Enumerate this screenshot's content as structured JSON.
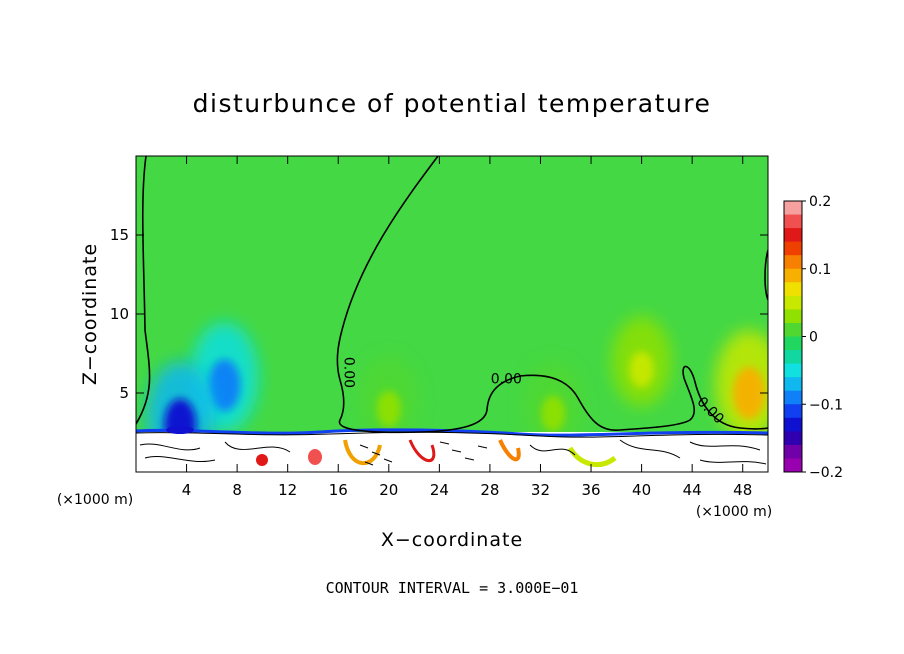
{
  "chart_data": {
    "type": "heatmap",
    "title": "disturbunce of potential temperature",
    "xlabel": "X−coordinate",
    "ylabel": "Z−coordinate",
    "x_unit": "(×1000 m)",
    "z_unit": "(×1000 m)",
    "xlim": [
      0,
      50
    ],
    "ylim": [
      0,
      20
    ],
    "x_ticks": [
      4,
      8,
      12,
      16,
      20,
      24,
      28,
      32,
      36,
      40,
      44,
      48
    ],
    "y_ticks": [
      5,
      10,
      15
    ],
    "colorbar": {
      "ticks": [
        0.2,
        0.1,
        0,
        -0.1,
        -0.2
      ],
      "tick_labels": [
        "0.2",
        "0.1",
        "0",
        "−0.1",
        "−0.2"
      ],
      "range": [
        -0.2,
        0.2
      ],
      "colors": [
        "#f7a0a0",
        "#f05050",
        "#e01818",
        "#f04000",
        "#f88000",
        "#f8b000",
        "#f0e000",
        "#c8e800",
        "#90e000",
        "#50d830",
        "#20d860",
        "#10d8a0",
        "#10e0e0",
        "#10b8f0",
        "#1080f8",
        "#1040f0",
        "#1010d0",
        "#3000b0",
        "#7000a8",
        "#9800b0"
      ]
    },
    "contour_labels": [
      {
        "text": "0.00",
        "near_x": 16.5,
        "near_z": 6.3,
        "rotation_deg": 90
      },
      {
        "text": "0.00",
        "near_x": 29.3,
        "near_z": 5.6,
        "rotation_deg": 0
      },
      {
        "text": "0.00",
        "near_x": 45.2,
        "near_z": 3.7,
        "rotation_deg": 45
      }
    ],
    "contour_interval_label": "CONTOUR INTERVAL = 3.000E−01",
    "field_features": [
      {
        "kind": "cold-anomaly",
        "x": 7,
        "z": 6,
        "value": -0.08
      },
      {
        "kind": "cold-anomaly",
        "x": 3.5,
        "z": 3.5,
        "value": -0.13
      },
      {
        "kind": "warm-anomaly",
        "x": 48.5,
        "z": 5.5,
        "value": 0.09
      },
      {
        "kind": "warm-anomaly",
        "x": 40,
        "z": 7,
        "value": 0.04
      },
      {
        "kind": "warm-anomaly",
        "x": 20,
        "z": 4.5,
        "value": 0.03
      },
      {
        "kind": "warm-anomaly",
        "x": 33,
        "z": 4.2,
        "value": 0.03
      }
    ]
  }
}
